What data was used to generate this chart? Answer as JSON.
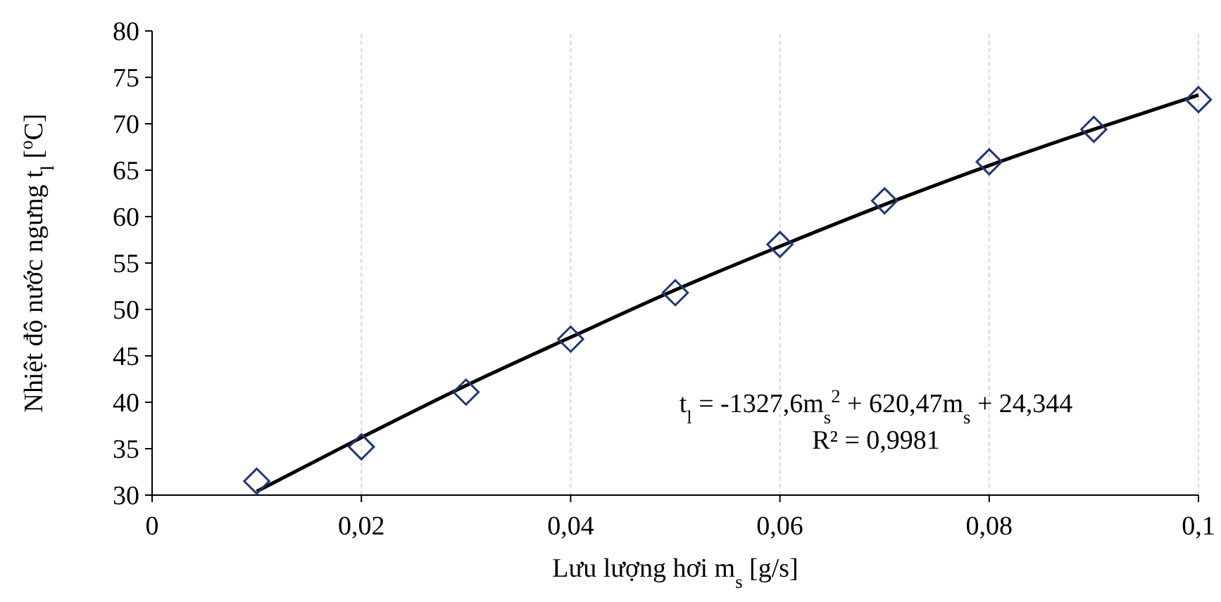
{
  "chart_data": {
    "type": "scatter",
    "xlabel": "Lưu lượng hơi m$_{s}$ [g/s]",
    "ylabel": "Nhiệt độ nước ngưng t$_{l}$ [$^{o}$C]",
    "x": [
      0.01,
      0.02,
      0.03,
      0.04,
      0.05,
      0.06,
      0.07,
      0.08,
      0.09,
      0.1
    ],
    "series": [
      {
        "color": "#1f3870",
        "marker": "diamond",
        "values": [
          31.5,
          35.2,
          41.1,
          46.8,
          51.8,
          57.0,
          61.7,
          65.9,
          69.4,
          72.6
        ]
      },
      {
        "type": "line",
        "color": "#000000",
        "marker": "none",
        "line_style": "solid",
        "x": [
          0.01,
          0.02,
          0.03,
          0.04,
          0.05,
          0.06,
          0.07,
          0.08,
          0.09,
          0.1
        ],
        "values": [
          30.4,
          36.2,
          41.8,
          47.0,
          52.1,
          56.8,
          61.3,
          65.5,
          69.4,
          73.1
        ]
      }
    ],
    "xlim": [
      0,
      0.1
    ],
    "xticks": [
      0,
      {
        "value": 0.02,
        "label": "0,02"
      },
      {
        "value": 0.04,
        "label": "0,04"
      },
      {
        "value": 0.06,
        "label": "0,06"
      },
      {
        "value": 0.08,
        "label": "0,08"
      },
      {
        "value": 0.1,
        "label": "0,1"
      }
    ],
    "ylim": [
      30,
      80
    ],
    "yticks": [
      30,
      35,
      40,
      45,
      50,
      55,
      60,
      65,
      70,
      75,
      80
    ],
    "grid": "x",
    "annotations": [
      "t$_{l}$ = -1327,6m$_{s}$$^{2}$ + 620,47m$_{s}$ + 24,344",
      "R² = 0,9981"
    ]
  }
}
